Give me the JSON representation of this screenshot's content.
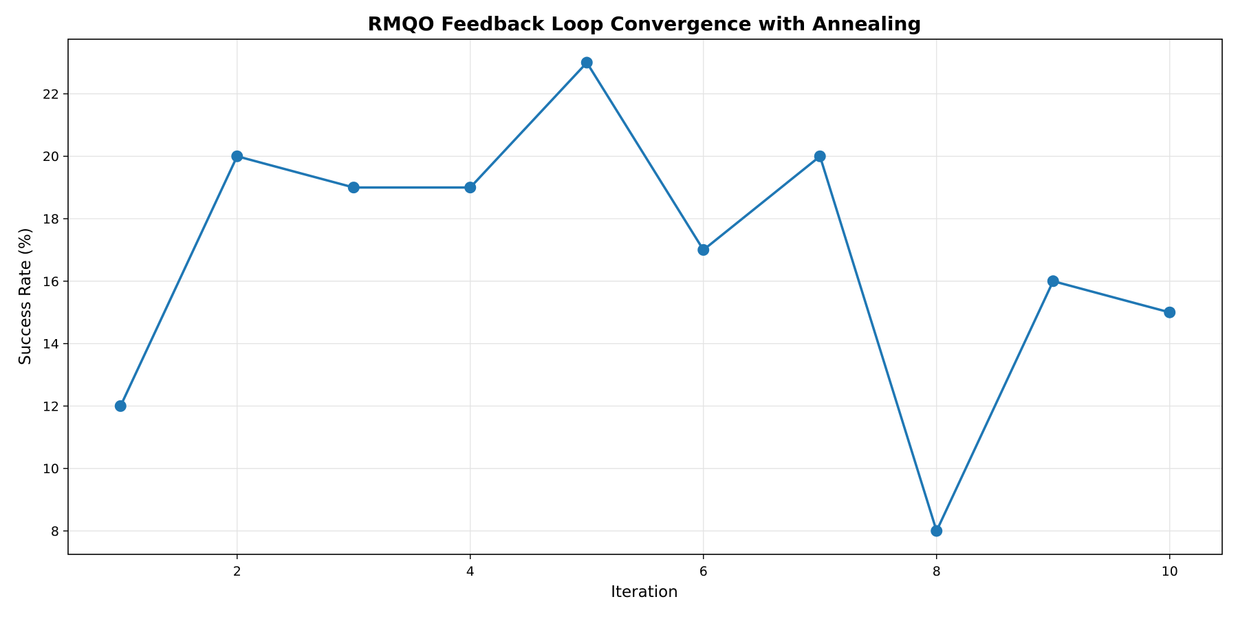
{
  "chart_data": {
    "type": "line",
    "title": "RMQO Feedback Loop Convergence with Annealing",
    "xlabel": "Iteration",
    "ylabel": "Success Rate (%)",
    "x": [
      1,
      2,
      3,
      4,
      5,
      6,
      7,
      8,
      9,
      10
    ],
    "series": [
      {
        "values": [
          12,
          20,
          19,
          19,
          23,
          17,
          20,
          8,
          16,
          15
        ],
        "color": "#1f77b4",
        "marker": "circle"
      }
    ],
    "xlim": [
      0.55,
      10.45
    ],
    "ylim": [
      7.25,
      23.75
    ],
    "xticks": [
      2,
      4,
      6,
      8,
      10
    ],
    "yticks": [
      8,
      10,
      12,
      14,
      16,
      18,
      20,
      22
    ],
    "grid": true,
    "legend": "none"
  }
}
